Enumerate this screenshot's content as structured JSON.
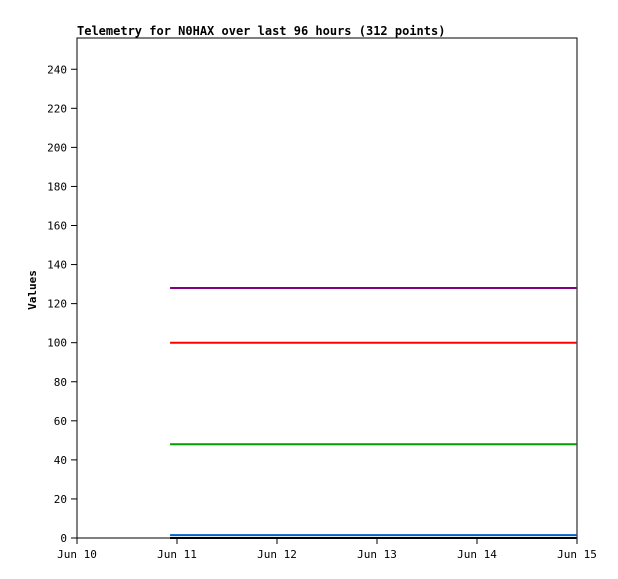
{
  "chart_data": {
    "type": "line",
    "title": "Telemetry for N0HAX over last 96 hours (312 points)",
    "xlabel": "",
    "ylabel": "Values",
    "xlim": [
      "Jun 10",
      "Jun 15"
    ],
    "ylim": [
      0,
      256
    ],
    "x_ticks": [
      "Jun 10",
      "Jun 11",
      "Jun 12",
      "Jun 13",
      "Jun 14",
      "Jun 15"
    ],
    "y_ticks": [
      0,
      20,
      40,
      60,
      80,
      100,
      120,
      140,
      160,
      180,
      200,
      220,
      240
    ],
    "grid": false,
    "series": [
      {
        "color": "#800080",
        "x": [
          "Jun 10 22:20",
          "Jun 14 23:50"
        ],
        "values": [
          128,
          128
        ]
      },
      {
        "color": "#ff0000",
        "x": [
          "Jun 10 22:20",
          "Jun 14 23:50"
        ],
        "values": [
          100,
          100
        ]
      },
      {
        "color": "#00a000",
        "x": [
          "Jun 10 22:20",
          "Jun 14 23:50"
        ],
        "values": [
          48,
          48
        ]
      },
      {
        "color": "#0060d0",
        "x": [
          "Jun 10 22:20",
          "Jun 14 23:50"
        ],
        "values": [
          1.5,
          1.5
        ]
      },
      {
        "color": "#000000",
        "x": [
          "Jun 10 22:20",
          "Jun 14 23:50"
        ],
        "values": [
          0,
          0
        ]
      }
    ]
  }
}
